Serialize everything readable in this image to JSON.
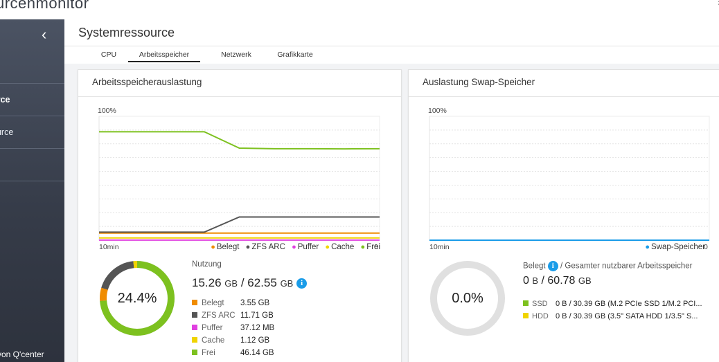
{
  "app": {
    "title": "urcenmonitor"
  },
  "sidebar": {
    "items": [
      {
        "label": "urce"
      },
      {
        "label": "ource"
      }
    ],
    "footer": "von Q'center"
  },
  "main": {
    "title": "Systemressource",
    "tabs": [
      {
        "label": "CPU",
        "active": false
      },
      {
        "label": "Arbeitsspeicher",
        "active": true
      },
      {
        "label": "Netzwerk",
        "active": false
      },
      {
        "label": "Grafikkarte",
        "active": false
      }
    ]
  },
  "memory_card": {
    "title": "Arbeitsspeicherauslastung",
    "chart_data": {
      "type": "line",
      "ytick_top": "100%",
      "xlabel_left": "10min",
      "xlabel_right": "0",
      "ylim": [
        0,
        100
      ],
      "series": [
        {
          "name": "Belegt",
          "color": "#f08c00",
          "values": [
            5.7,
            5.7,
            5.7,
            5.7,
            5.7,
            5.7,
            5.7,
            5.7,
            5.7
          ]
        },
        {
          "name": "ZFS ARC",
          "color": "#555555",
          "values": [
            6.5,
            6.5,
            6.5,
            6.5,
            18.7,
            18.7,
            18.7,
            18.7,
            18.7
          ]
        },
        {
          "name": "Puffer",
          "color": "#e040e0",
          "values": [
            0.06,
            0.06,
            0.06,
            0.06,
            0.06,
            0.06,
            0.06,
            0.06,
            0.06
          ]
        },
        {
          "name": "Cache",
          "color": "#f0d400",
          "values": [
            1.8,
            1.8,
            1.8,
            1.8,
            1.8,
            1.8,
            1.8,
            1.8,
            1.8
          ]
        },
        {
          "name": "Frei",
          "color": "#7dc11f",
          "values": [
            87.5,
            87.5,
            87.5,
            87.5,
            74.3,
            73.8,
            73.8,
            73.7,
            73.8
          ]
        }
      ]
    },
    "ring": {
      "percent_label": "24.4%",
      "percent": 24.4
    },
    "usage": {
      "caption": "Nutzung",
      "used": "15.26",
      "used_unit": "GB",
      "total": "62.55",
      "total_unit": "GB"
    },
    "breakdown": [
      {
        "name": "Belegt",
        "value": "3.55 GB",
        "color": "#f08c00"
      },
      {
        "name": "ZFS ARC",
        "value": "11.71 GB",
        "color": "#555555"
      },
      {
        "name": "Puffer",
        "value": "37.12 MB",
        "color": "#e040e0"
      },
      {
        "name": "Cache",
        "value": "1.12 GB",
        "color": "#f0d400"
      },
      {
        "name": "Frei",
        "value": "46.14 GB",
        "color": "#7dc11f"
      }
    ]
  },
  "swap_card": {
    "title": "Auslastung Swap-Speicher",
    "chart_data": {
      "type": "line",
      "ytick_top": "100%",
      "xlabel_left": "10min",
      "xlabel_right": "0",
      "ylim": [
        0,
        100
      ],
      "series": [
        {
          "name": "Swap-Speicher",
          "color": "#1a9ce8",
          "values": [
            0,
            0,
            0,
            0,
            0,
            0,
            0,
            0,
            0
          ]
        }
      ]
    },
    "ring": {
      "percent_label": "0.0%",
      "percent": 0
    },
    "usage": {
      "caption_used": "Belegt",
      "caption_rest": "/ Gesamter nutzbarer Arbeitsspeicher",
      "used": "0",
      "used_unit": "B",
      "total": "60.78",
      "total_unit": "GB"
    },
    "devices": [
      {
        "name": "SSD",
        "value": "0 B / 30.39 GB (M.2 PCIe SSD 1/M.2 PCI...",
        "color": "#7dc11f"
      },
      {
        "name": "HDD",
        "value": "0 B / 30.39 GB (3.5\" SATA HDD 1/3.5\" S...",
        "color": "#f0d400"
      }
    ]
  },
  "colors": {
    "accent": "#1a9ce8",
    "ring_used": "#7dc11f",
    "ring_track": "#e0e0e0"
  }
}
